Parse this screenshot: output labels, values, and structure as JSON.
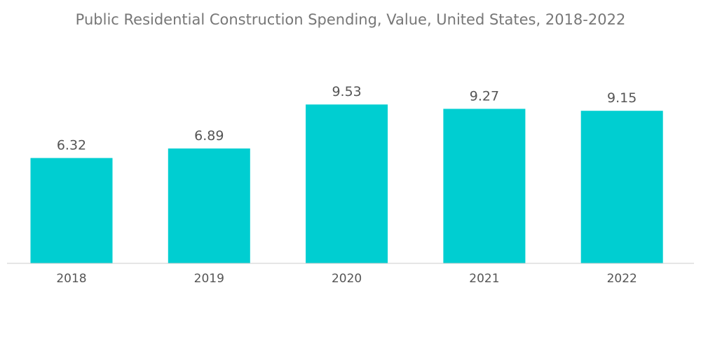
{
  "chart_data": {
    "type": "bar",
    "title": "Public Residential Construction Spending, Value, United States, 2018-2022",
    "categories": [
      "2018",
      "2019",
      "2020",
      "2021",
      "2022"
    ],
    "values": [
      6.32,
      6.89,
      9.53,
      9.27,
      9.15
    ],
    "value_labels": [
      "6.32",
      "6.89",
      "9.53",
      "9.27",
      "9.15"
    ],
    "xlabel": "",
    "ylabel": "",
    "ylim": [
      0,
      10
    ],
    "grid": false,
    "legend": "none",
    "bar_color": "#00CED1",
    "axis_color": "#cccccc"
  }
}
